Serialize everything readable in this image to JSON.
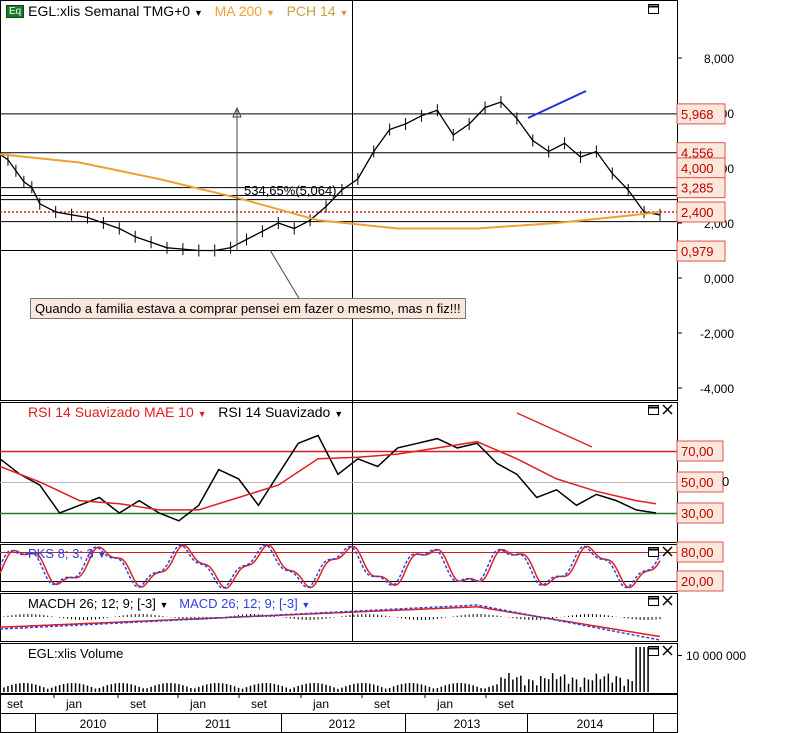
{
  "header": {
    "badge": "Eq",
    "symbol": "EGL:xlis Semanal TMG+0",
    "ma": "MA 200",
    "pch": "PCH 14",
    "measure": "534,65%(5,064)"
  },
  "annotation": "Quando a familia estava a comprar pensei em fazer o mesmo, mas n fiz!!!",
  "rsi_panel": {
    "label1": "RSI 14 Suavizado MAE 10",
    "label2": "RSI 14 Suavizado",
    "stray": "0"
  },
  "pks_panel": {
    "label": "PKS 8; 3; 3"
  },
  "macd_panel": {
    "label1": "MACDH 26; 12; 9; [-3]",
    "label2": "MACD 26; 12; 9; [-3]"
  },
  "volume_panel": {
    "label": "EGL:xlis Volume",
    "tick": "10 000 000"
  },
  "colors": {
    "ma": "#f0a030",
    "pch": "#c8a040",
    "rsi": "#e02020",
    "macd": "#3040e0",
    "price_tag": "#c00000"
  },
  "chart_data": [
    {
      "type": "candlestick",
      "panel": "price",
      "yticks": [
        "8,000",
        "6,000",
        "4,000",
        "2,000",
        "0,000",
        "-2,000",
        "-4,000"
      ],
      "ytick_values": [
        8,
        6,
        4,
        2,
        0,
        -2,
        -4
      ],
      "price_labels": [
        "5,968",
        "4,556",
        "4,000",
        "3,285",
        "2,400",
        "0,979"
      ],
      "price_label_values": [
        5.968,
        4.556,
        4.0,
        3.285,
        2.4,
        0.979
      ],
      "series": [
        {
          "name": "EGL:xlis Semanal TMG+0",
          "x": [
            0,
            4,
            8,
            12,
            16,
            20,
            28,
            36,
            44,
            52,
            60,
            68,
            76,
            84,
            92,
            100,
            108,
            116,
            124,
            132,
            140,
            148,
            156,
            164,
            172,
            180,
            188,
            196,
            204,
            212,
            220,
            228,
            236,
            244,
            252,
            260,
            268,
            276,
            284,
            292,
            300,
            308,
            316,
            324,
            332
          ],
          "values": [
            4.5,
            4.3,
            3.9,
            3.5,
            3.3,
            2.7,
            2.4,
            2.3,
            2.2,
            2.0,
            1.8,
            1.5,
            1.3,
            1.1,
            1.05,
            1.0,
            1.0,
            1.1,
            1.4,
            1.7,
            2.0,
            1.8,
            2.1,
            2.6,
            3.2,
            3.6,
            4.6,
            5.4,
            5.6,
            5.9,
            6.1,
            5.2,
            5.6,
            6.2,
            6.4,
            5.8,
            5.0,
            4.6,
            4.9,
            4.4,
            4.6,
            3.8,
            3.2,
            2.4,
            2.3
          ]
        },
        {
          "name": "MA 200",
          "x": [
            0,
            40,
            80,
            120,
            160,
            200,
            240,
            280,
            320,
            332
          ],
          "values": [
            4.5,
            4.2,
            3.6,
            2.9,
            2.1,
            1.8,
            1.8,
            2.0,
            2.3,
            2.4
          ]
        }
      ]
    },
    {
      "type": "line",
      "panel": "rsi",
      "yticks": [
        "70,00",
        "50,00",
        "30,00"
      ],
      "ytick_values": [
        70,
        50,
        30
      ],
      "series": [
        {
          "name": "RSI 14 Suavizado",
          "x": [
            0,
            10,
            20,
            30,
            40,
            50,
            60,
            70,
            80,
            90,
            100,
            110,
            120,
            130,
            140,
            150,
            160,
            170,
            180,
            190,
            200,
            210,
            220,
            230,
            240,
            250,
            260,
            270,
            280,
            290,
            300,
            310,
            320,
            330
          ],
          "values": [
            65,
            55,
            48,
            30,
            35,
            40,
            30,
            38,
            30,
            25,
            35,
            58,
            52,
            35,
            55,
            75,
            80,
            55,
            65,
            60,
            72,
            75,
            78,
            72,
            75,
            62,
            55,
            40,
            45,
            35,
            42,
            38,
            32,
            30
          ]
        },
        {
          "name": "RSI 14 Suavizado MAE 10",
          "x": [
            0,
            20,
            40,
            60,
            80,
            100,
            120,
            140,
            160,
            180,
            200,
            220,
            240,
            260,
            280,
            300,
            320,
            330
          ],
          "values": [
            60,
            50,
            38,
            36,
            32,
            32,
            40,
            48,
            65,
            66,
            68,
            72,
            76,
            65,
            52,
            44,
            38,
            36
          ]
        }
      ]
    },
    {
      "type": "line",
      "panel": "pks",
      "yticks": [
        "80,00",
        "20,00"
      ],
      "ytick_values": [
        80,
        20
      ]
    },
    {
      "type": "line",
      "panel": "macd"
    },
    {
      "type": "bar",
      "panel": "volume",
      "yticks": [
        "10 000 000"
      ]
    }
  ],
  "xaxis": {
    "months": [
      "set",
      "jan",
      "set",
      "jan",
      "set",
      "jan",
      "set",
      "jan",
      "set"
    ],
    "years": [
      "2010",
      "2011",
      "2012",
      "2013",
      "2014"
    ]
  }
}
